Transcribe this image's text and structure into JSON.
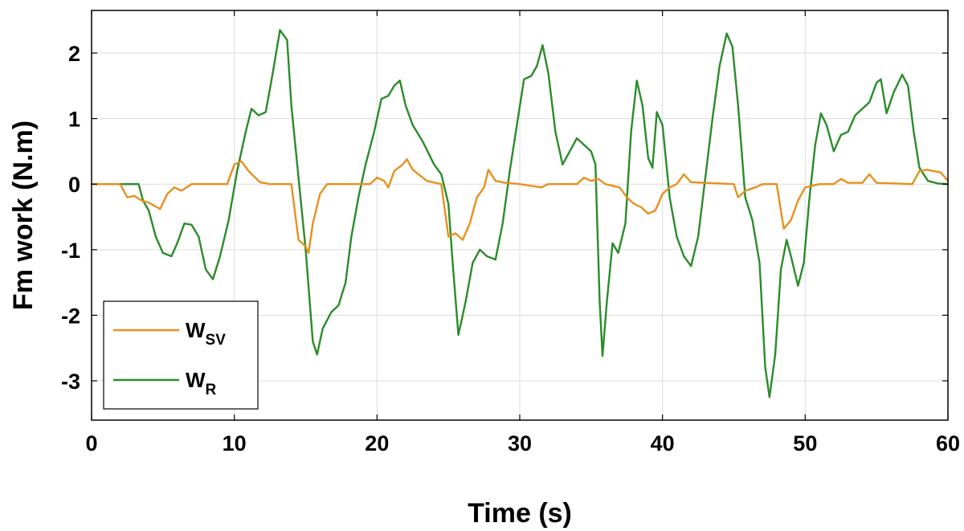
{
  "chart_data": {
    "type": "line",
    "xlabel": "Time (s)",
    "ylabel": "Fm work (N.m)",
    "xlim": [
      0,
      60
    ],
    "ylim": [
      -3.6,
      2.65
    ],
    "xticks": [
      0,
      10,
      20,
      30,
      40,
      50,
      60
    ],
    "yticks": [
      -3,
      -2,
      -1,
      0,
      1,
      2
    ],
    "grid": true,
    "legend_position": "bottom-left",
    "series": [
      {
        "name": "W_SV",
        "legend_main": "W",
        "legend_sub": "SV",
        "color": "#e8901e",
        "points": [
          [
            0,
            0
          ],
          [
            2,
            0
          ],
          [
            2.5,
            -0.2
          ],
          [
            3,
            -0.18
          ],
          [
            3.5,
            -0.25
          ],
          [
            4,
            -0.28
          ],
          [
            4.8,
            -0.38
          ],
          [
            5.3,
            -0.15
          ],
          [
            5.8,
            -0.05
          ],
          [
            6.3,
            -0.1
          ],
          [
            7,
            0
          ],
          [
            9.5,
            0
          ],
          [
            10,
            0.3
          ],
          [
            10.5,
            0.35
          ],
          [
            11,
            0.2
          ],
          [
            11.8,
            0.03
          ],
          [
            12.5,
            0
          ],
          [
            14,
            0
          ],
          [
            14.5,
            -0.85
          ],
          [
            15,
            -0.95
          ],
          [
            15.2,
            -1.05
          ],
          [
            15.5,
            -0.6
          ],
          [
            16,
            -0.15
          ],
          [
            16.5,
            0
          ],
          [
            19.5,
            0
          ],
          [
            20,
            0.1
          ],
          [
            20.5,
            0.05
          ],
          [
            20.8,
            -0.05
          ],
          [
            21.2,
            0.2
          ],
          [
            21.8,
            0.3
          ],
          [
            22.1,
            0.38
          ],
          [
            22.5,
            0.22
          ],
          [
            23.5,
            0.05
          ],
          [
            24.5,
            0
          ],
          [
            25,
            -0.8
          ],
          [
            25.5,
            -0.75
          ],
          [
            26,
            -0.85
          ],
          [
            26.5,
            -0.6
          ],
          [
            27,
            -0.2
          ],
          [
            27.5,
            -0.05
          ],
          [
            27.8,
            0.22
          ],
          [
            28.3,
            0.05
          ],
          [
            29,
            0.02
          ],
          [
            30,
            0
          ],
          [
            31.5,
            -0.05
          ],
          [
            32,
            0
          ],
          [
            34,
            0
          ],
          [
            34.5,
            0.1
          ],
          [
            35,
            0.05
          ],
          [
            35.5,
            0.08
          ],
          [
            36,
            0
          ],
          [
            37,
            -0.05
          ],
          [
            37.5,
            -0.2
          ],
          [
            38,
            -0.3
          ],
          [
            38.5,
            -0.35
          ],
          [
            39,
            -0.45
          ],
          [
            39.5,
            -0.4
          ],
          [
            40,
            -0.15
          ],
          [
            40.5,
            -0.05
          ],
          [
            41,
            0
          ],
          [
            41.5,
            0.15
          ],
          [
            42,
            0.03
          ],
          [
            45,
            0
          ],
          [
            45.3,
            -0.2
          ],
          [
            45.8,
            -0.1
          ],
          [
            46.5,
            -0.05
          ],
          [
            47,
            0
          ],
          [
            48,
            0
          ],
          [
            48.5,
            -0.68
          ],
          [
            49,
            -0.55
          ],
          [
            49.5,
            -0.25
          ],
          [
            50,
            -0.05
          ],
          [
            51,
            0
          ],
          [
            52,
            0
          ],
          [
            52.5,
            0.08
          ],
          [
            53,
            0.02
          ],
          [
            54,
            0.02
          ],
          [
            54.5,
            0.15
          ],
          [
            55,
            0.02
          ],
          [
            57.5,
            0
          ],
          [
            58,
            0.2
          ],
          [
            58.5,
            0.22
          ],
          [
            59.5,
            0.18
          ],
          [
            60,
            0.05
          ]
        ]
      },
      {
        "name": "W_R",
        "legend_main": "W",
        "legend_sub": "R",
        "color": "#2b8b2b",
        "points": [
          [
            0,
            0
          ],
          [
            3.3,
            0
          ],
          [
            3.6,
            -0.25
          ],
          [
            4,
            -0.4
          ],
          [
            4.5,
            -0.8
          ],
          [
            5,
            -1.05
          ],
          [
            5.6,
            -1.1
          ],
          [
            6,
            -0.9
          ],
          [
            6.5,
            -0.6
          ],
          [
            7,
            -0.62
          ],
          [
            7.5,
            -0.8
          ],
          [
            8,
            -1.3
          ],
          [
            8.5,
            -1.45
          ],
          [
            9,
            -1.1
          ],
          [
            9.6,
            -0.55
          ],
          [
            10.2,
            0.2
          ],
          [
            10.8,
            0.8
          ],
          [
            11.2,
            1.15
          ],
          [
            11.7,
            1.05
          ],
          [
            12.2,
            1.1
          ],
          [
            12.7,
            1.7
          ],
          [
            13.2,
            2.35
          ],
          [
            13.7,
            2.2
          ],
          [
            14,
            1.2
          ],
          [
            14.5,
            0.1
          ],
          [
            15,
            -1.0
          ],
          [
            15.5,
            -2.4
          ],
          [
            15.8,
            -2.6
          ],
          [
            16.2,
            -2.2
          ],
          [
            16.8,
            -1.95
          ],
          [
            17.3,
            -1.85
          ],
          [
            17.8,
            -1.5
          ],
          [
            18.2,
            -0.8
          ],
          [
            18.7,
            -0.2
          ],
          [
            19.2,
            0.3
          ],
          [
            19.8,
            0.8
          ],
          [
            20.3,
            1.3
          ],
          [
            20.8,
            1.35
          ],
          [
            21.2,
            1.5
          ],
          [
            21.6,
            1.58
          ],
          [
            22,
            1.2
          ],
          [
            22.5,
            0.9
          ],
          [
            23.2,
            0.65
          ],
          [
            24,
            0.3
          ],
          [
            24.5,
            0.15
          ],
          [
            25,
            -0.3
          ],
          [
            25.3,
            -1.2
          ],
          [
            25.7,
            -2.3
          ],
          [
            26.2,
            -1.8
          ],
          [
            26.7,
            -1.2
          ],
          [
            27.2,
            -1.0
          ],
          [
            27.7,
            -1.1
          ],
          [
            28.3,
            -1.15
          ],
          [
            28.8,
            -0.6
          ],
          [
            29.3,
            0.2
          ],
          [
            29.8,
            0.9
          ],
          [
            30.3,
            1.6
          ],
          [
            30.8,
            1.65
          ],
          [
            31.2,
            1.8
          ],
          [
            31.6,
            2.12
          ],
          [
            32,
            1.7
          ],
          [
            32.5,
            0.8
          ],
          [
            33,
            0.3
          ],
          [
            33.5,
            0.5
          ],
          [
            34,
            0.7
          ],
          [
            34.5,
            0.6
          ],
          [
            35,
            0.5
          ],
          [
            35.3,
            0.3
          ],
          [
            35.6,
            -1.8
          ],
          [
            35.8,
            -2.62
          ],
          [
            36.1,
            -1.8
          ],
          [
            36.5,
            -0.9
          ],
          [
            36.9,
            -1.05
          ],
          [
            37.4,
            -0.6
          ],
          [
            37.8,
            0.8
          ],
          [
            38.2,
            1.58
          ],
          [
            38.6,
            1.2
          ],
          [
            39,
            0.4
          ],
          [
            39.3,
            0.25
          ],
          [
            39.6,
            1.1
          ],
          [
            40,
            0.9
          ],
          [
            40.5,
            -0.2
          ],
          [
            41,
            -0.8
          ],
          [
            41.5,
            -1.1
          ],
          [
            42,
            -1.25
          ],
          [
            42.5,
            -0.8
          ],
          [
            43,
            0.1
          ],
          [
            43.5,
            1.0
          ],
          [
            44,
            1.8
          ],
          [
            44.5,
            2.3
          ],
          [
            44.9,
            2.1
          ],
          [
            45.3,
            1.2
          ],
          [
            45.8,
            -0.2
          ],
          [
            46.3,
            -0.55
          ],
          [
            46.8,
            -1.2
          ],
          [
            47.2,
            -2.8
          ],
          [
            47.5,
            -3.25
          ],
          [
            47.9,
            -2.6
          ],
          [
            48.3,
            -1.3
          ],
          [
            48.7,
            -0.85
          ],
          [
            49,
            -1.1
          ],
          [
            49.5,
            -1.55
          ],
          [
            49.9,
            -1.2
          ],
          [
            50.3,
            -0.2
          ],
          [
            50.7,
            0.6
          ],
          [
            51.1,
            1.08
          ],
          [
            51.5,
            0.9
          ],
          [
            52,
            0.5
          ],
          [
            52.5,
            0.75
          ],
          [
            53,
            0.8
          ],
          [
            53.5,
            1.05
          ],
          [
            54,
            1.15
          ],
          [
            54.5,
            1.25
          ],
          [
            55,
            1.55
          ],
          [
            55.3,
            1.6
          ],
          [
            55.7,
            1.08
          ],
          [
            56.2,
            1.4
          ],
          [
            56.8,
            1.67
          ],
          [
            57.2,
            1.5
          ],
          [
            57.6,
            0.8
          ],
          [
            58,
            0.25
          ],
          [
            58.6,
            0.05
          ],
          [
            59.3,
            0.01
          ],
          [
            60,
            0
          ]
        ]
      }
    ]
  }
}
